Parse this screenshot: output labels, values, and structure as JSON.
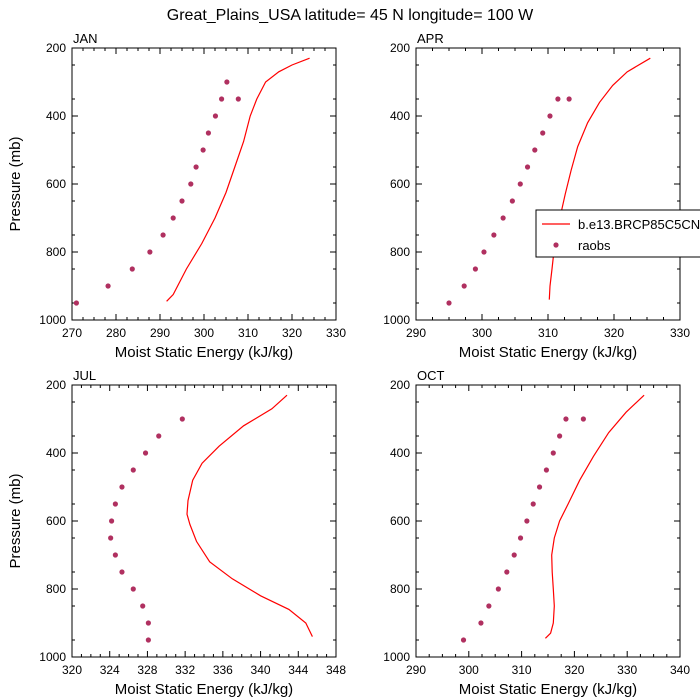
{
  "figure_title": "Great_Plains_USA  latitude= 45 N longitude= 100 W",
  "legend": {
    "model_label": "b.e13.BRCP85C5CN",
    "obs_label": "raobs",
    "model_color": "#ff0000",
    "obs_color": "#b03060"
  },
  "chart_data": [
    {
      "type": "line",
      "panel_label": "JAN",
      "xlabel": "Moist Static Energy (kJ/kg)",
      "ylabel": "Pressure (mb)",
      "xlim": [
        270,
        330
      ],
      "xticks": [
        270,
        280,
        290,
        300,
        310,
        320,
        330
      ],
      "ylim": [
        1000,
        200
      ],
      "yticks": [
        200,
        400,
        600,
        800,
        1000
      ],
      "model": {
        "x": [
          291.5,
          293,
          296,
          299.5,
          302.5,
          305,
          307,
          309,
          310.5,
          312,
          314,
          317,
          320,
          324
        ],
        "y": [
          945,
          925,
          850,
          775,
          700,
          625,
          550,
          475,
          400,
          350,
          300,
          270,
          250,
          230
        ]
      },
      "obs": {
        "x": [
          271,
          278.2,
          283.7,
          287.7,
          290.7,
          293,
          295,
          297,
          298.2,
          299.8,
          301,
          302.6,
          304,
          305.2,
          307.8
        ],
        "y": [
          950,
          900,
          850,
          800,
          750,
          700,
          650,
          600,
          550,
          500,
          450,
          400,
          350,
          300,
          350
        ]
      }
    },
    {
      "type": "line",
      "panel_label": "APR",
      "xlabel": "Moist Static Energy (kJ/kg)",
      "ylabel": "",
      "xlim": [
        290,
        330
      ],
      "xticks": [
        290,
        300,
        310,
        320,
        330
      ],
      "ylim": [
        1000,
        200
      ],
      "yticks": [
        200,
        400,
        600,
        800,
        1000
      ],
      "model": {
        "x": [
          310.2,
          310.3,
          310.6,
          311,
          311.8,
          312.6,
          313.5,
          314.5,
          316,
          317.8,
          319.8,
          322,
          325.5
        ],
        "y": [
          940,
          900,
          850,
          780,
          700,
          630,
          560,
          490,
          420,
          360,
          310,
          270,
          230
        ]
      },
      "obs": {
        "x": [
          295,
          297.3,
          299,
          300.3,
          301.8,
          303.2,
          304.6,
          305.8,
          306.9,
          308,
          309.2,
          310.3,
          311.5,
          313.2
        ],
        "y": [
          950,
          900,
          850,
          800,
          750,
          700,
          650,
          600,
          550,
          500,
          450,
          400,
          350,
          350
        ]
      }
    },
    {
      "type": "line",
      "panel_label": "JUL",
      "xlabel": "Moist Static Energy (kJ/kg)",
      "ylabel": "Pressure (mb)",
      "xlim": [
        320,
        348
      ],
      "xticks": [
        320,
        324,
        328,
        332,
        336,
        340,
        344,
        348
      ],
      "ylim": [
        1000,
        200
      ],
      "yticks": [
        200,
        400,
        600,
        800,
        1000
      ],
      "model": {
        "x": [
          345.5,
          344.8,
          343,
          340,
          337,
          334.6,
          333.2,
          332.5,
          332.2,
          332.3,
          332.8,
          333.8,
          335.6,
          338.2,
          341.2,
          342.8
        ],
        "y": [
          940,
          900,
          860,
          820,
          770,
          720,
          660,
          610,
          580,
          540,
          480,
          430,
          380,
          320,
          270,
          230
        ]
      },
      "obs": {
        "x": [
          328.1,
          328.1,
          327.5,
          326.5,
          325.3,
          324.6,
          324.1,
          324.2,
          324.6,
          325.3,
          326.5,
          327.8,
          329.2,
          331.7
        ],
        "y": [
          950,
          900,
          850,
          800,
          750,
          700,
          650,
          600,
          550,
          500,
          450,
          400,
          350,
          300
        ]
      }
    },
    {
      "type": "line",
      "panel_label": "OCT",
      "xlabel": "Moist Static Energy (kJ/kg)",
      "ylabel": "",
      "xlim": [
        290,
        340
      ],
      "xticks": [
        290,
        300,
        310,
        320,
        330,
        340
      ],
      "ylim": [
        1000,
        200
      ],
      "yticks": [
        200,
        400,
        600,
        800,
        1000
      ],
      "model": {
        "x": [
          314.5,
          315.5,
          316,
          316.2,
          316,
          315.8,
          315.7,
          316.2,
          317.2,
          318.8,
          321,
          323.6,
          326.5,
          329.8,
          333.2
        ],
        "y": [
          945,
          930,
          900,
          850,
          800,
          750,
          700,
          650,
          600,
          550,
          480,
          410,
          340,
          280,
          230
        ]
      },
      "obs": {
        "x": [
          299,
          302.3,
          303.8,
          305.6,
          307.2,
          308.6,
          309.8,
          311,
          312.2,
          313.4,
          314.7,
          316,
          317.2,
          318.4,
          321.7
        ],
        "y": [
          950,
          900,
          850,
          800,
          750,
          700,
          650,
          600,
          550,
          500,
          450,
          400,
          350,
          300,
          300
        ]
      }
    }
  ]
}
